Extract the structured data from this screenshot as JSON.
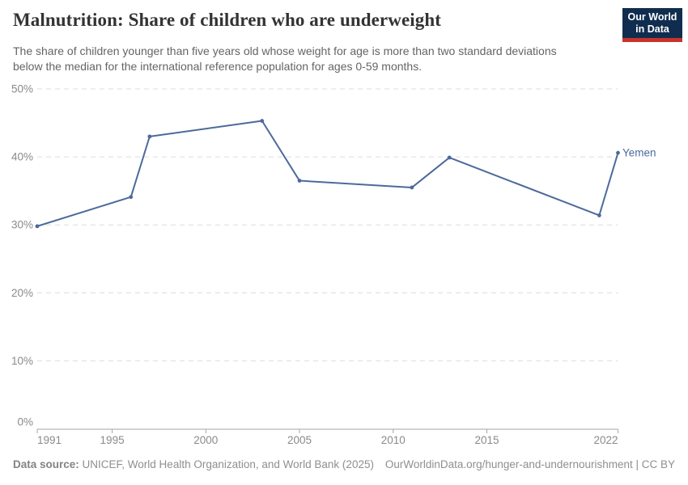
{
  "header": {
    "title": "Malnutrition: Share of children who are underweight",
    "subtitle_lines": [
      "The share of children younger than five years old whose weight for age is more than two standard deviations",
      "below the median for the international reference population for ages 0-59 months."
    ],
    "logo": {
      "line1": "Our World",
      "line2": "in Data"
    }
  },
  "chart_data": {
    "type": "line",
    "title": "Malnutrition: Share of children who are underweight",
    "entity_label": "Yemen",
    "x": [
      1991,
      1996,
      1997,
      2003,
      2005,
      2011,
      2013,
      2021,
      2022
    ],
    "series": [
      {
        "name": "Yemen",
        "values": [
          29.8,
          34.1,
          43.0,
          45.3,
          36.5,
          35.5,
          39.9,
          31.4,
          40.6
        ]
      }
    ],
    "xlabel": "",
    "ylabel": "",
    "xlim": [
      1991,
      2022
    ],
    "ylim": [
      0,
      50
    ],
    "xticks": [
      {
        "value": 1991,
        "label": "1991",
        "anchor": "start"
      },
      {
        "value": 1995,
        "label": "1995",
        "anchor": "middle"
      },
      {
        "value": 2000,
        "label": "2000",
        "anchor": "middle"
      },
      {
        "value": 2005,
        "label": "2005",
        "anchor": "middle"
      },
      {
        "value": 2010,
        "label": "2010",
        "anchor": "middle"
      },
      {
        "value": 2015,
        "label": "2015",
        "anchor": "middle"
      },
      {
        "value": 2022,
        "label": "2022",
        "anchor": "end"
      }
    ],
    "yticks": [
      {
        "value": 0,
        "label": "0%"
      },
      {
        "value": 10,
        "label": "10%"
      },
      {
        "value": 20,
        "label": "20%"
      },
      {
        "value": 30,
        "label": "30%"
      },
      {
        "value": 40,
        "label": "40%"
      },
      {
        "value": 50,
        "label": "50%"
      }
    ],
    "grid": "horizontal-dashed",
    "legend_position": "end-of-line"
  },
  "footer": {
    "data_source_label": "Data source:",
    "data_source_text": "UNICEF, World Health Organization, and World Bank (2025)",
    "attribution": "OurWorldinData.org/hunger-and-undernourishment | CC BY"
  },
  "colors": {
    "line": "#4C6A9C",
    "entity_label": "#4C6A9C",
    "gridline": "#dcdcdc",
    "axis": "#a5a5a5",
    "tick_label": "#8a8a8a",
    "logo_bg": "#102d4f",
    "logo_red": "#c5342b"
  }
}
